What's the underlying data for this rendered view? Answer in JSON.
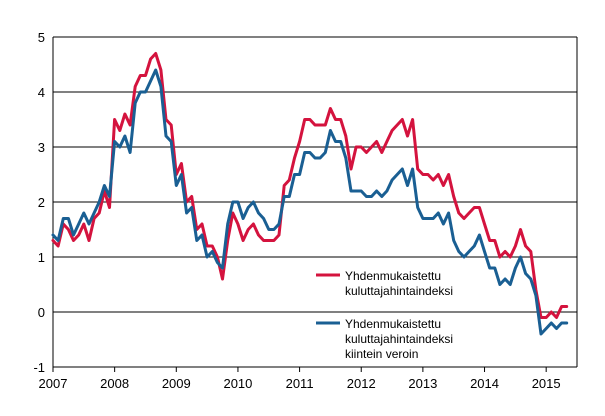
{
  "chart_data": {
    "type": "line",
    "title": "",
    "xlabel": "",
    "ylabel": "",
    "ylim": [
      -1,
      5
    ],
    "xlim": [
      "2007-01",
      "2015-07"
    ],
    "grid": "horizontal",
    "legend_position": "bottom-right",
    "x_tick_labels": [
      "2007",
      "2008",
      "2009",
      "2010",
      "2011",
      "2012",
      "2013",
      "2014",
      "2015"
    ],
    "y_tick_labels": [
      "-1",
      "0",
      "1",
      "2",
      "3",
      "4",
      "5"
    ],
    "x_start": "2007-01",
    "series": [
      {
        "name_lines": [
          "Yhdenmukaistettu",
          "kuluttajahintaindeksi"
        ],
        "color": "#d4133e",
        "values": [
          1.3,
          1.2,
          1.6,
          1.5,
          1.3,
          1.4,
          1.6,
          1.3,
          1.7,
          1.8,
          2.2,
          1.9,
          3.5,
          3.3,
          3.6,
          3.4,
          4.1,
          4.3,
          4.3,
          4.6,
          4.7,
          4.4,
          3.5,
          3.4,
          2.5,
          2.7,
          2.0,
          2.1,
          1.5,
          1.6,
          1.2,
          1.2,
          1.0,
          0.6,
          1.3,
          1.8,
          1.6,
          1.3,
          1.5,
          1.6,
          1.4,
          1.3,
          1.3,
          1.3,
          1.4,
          2.3,
          2.4,
          2.8,
          3.1,
          3.5,
          3.5,
          3.4,
          3.4,
          3.4,
          3.7,
          3.5,
          3.5,
          3.2,
          2.6,
          3.0,
          3.0,
          2.9,
          3.0,
          3.1,
          2.9,
          3.1,
          3.3,
          3.4,
          3.5,
          3.2,
          3.5,
          2.6,
          2.5,
          2.5,
          2.4,
          2.5,
          2.3,
          2.5,
          2.1,
          1.8,
          1.7,
          1.8,
          1.9,
          1.9,
          1.6,
          1.3,
          1.3,
          1.0,
          1.1,
          1.0,
          1.2,
          1.5,
          1.2,
          1.1,
          0.4,
          -0.1,
          -0.1,
          0.0,
          -0.1,
          0.1,
          0.1
        ]
      },
      {
        "name_lines": [
          "Yhdenmukaistettu",
          "kuluttajahintaindeksi",
          "kiintein veroin"
        ],
        "color": "#1a5f93",
        "values": [
          1.4,
          1.3,
          1.7,
          1.7,
          1.4,
          1.6,
          1.8,
          1.6,
          1.8,
          2.0,
          2.3,
          2.1,
          3.1,
          3.0,
          3.2,
          2.9,
          3.8,
          4.0,
          4.0,
          4.2,
          4.4,
          4.1,
          3.2,
          3.1,
          2.3,
          2.5,
          1.8,
          1.9,
          1.3,
          1.4,
          1.0,
          1.1,
          0.9,
          0.8,
          1.6,
          2.0,
          2.0,
          1.7,
          1.9,
          2.0,
          1.8,
          1.7,
          1.5,
          1.5,
          1.6,
          2.1,
          2.1,
          2.5,
          2.5,
          2.9,
          2.9,
          2.8,
          2.8,
          2.9,
          3.3,
          3.1,
          3.1,
          2.8,
          2.2,
          2.2,
          2.2,
          2.1,
          2.1,
          2.2,
          2.1,
          2.2,
          2.4,
          2.5,
          2.6,
          2.3,
          2.6,
          1.9,
          1.7,
          1.7,
          1.7,
          1.8,
          1.6,
          1.8,
          1.3,
          1.1,
          1.0,
          1.1,
          1.2,
          1.4,
          1.1,
          0.8,
          0.8,
          0.5,
          0.6,
          0.5,
          0.8,
          1.0,
          0.7,
          0.6,
          0.3,
          -0.4,
          -0.3,
          -0.2,
          -0.3,
          -0.2,
          -0.2
        ]
      }
    ]
  }
}
